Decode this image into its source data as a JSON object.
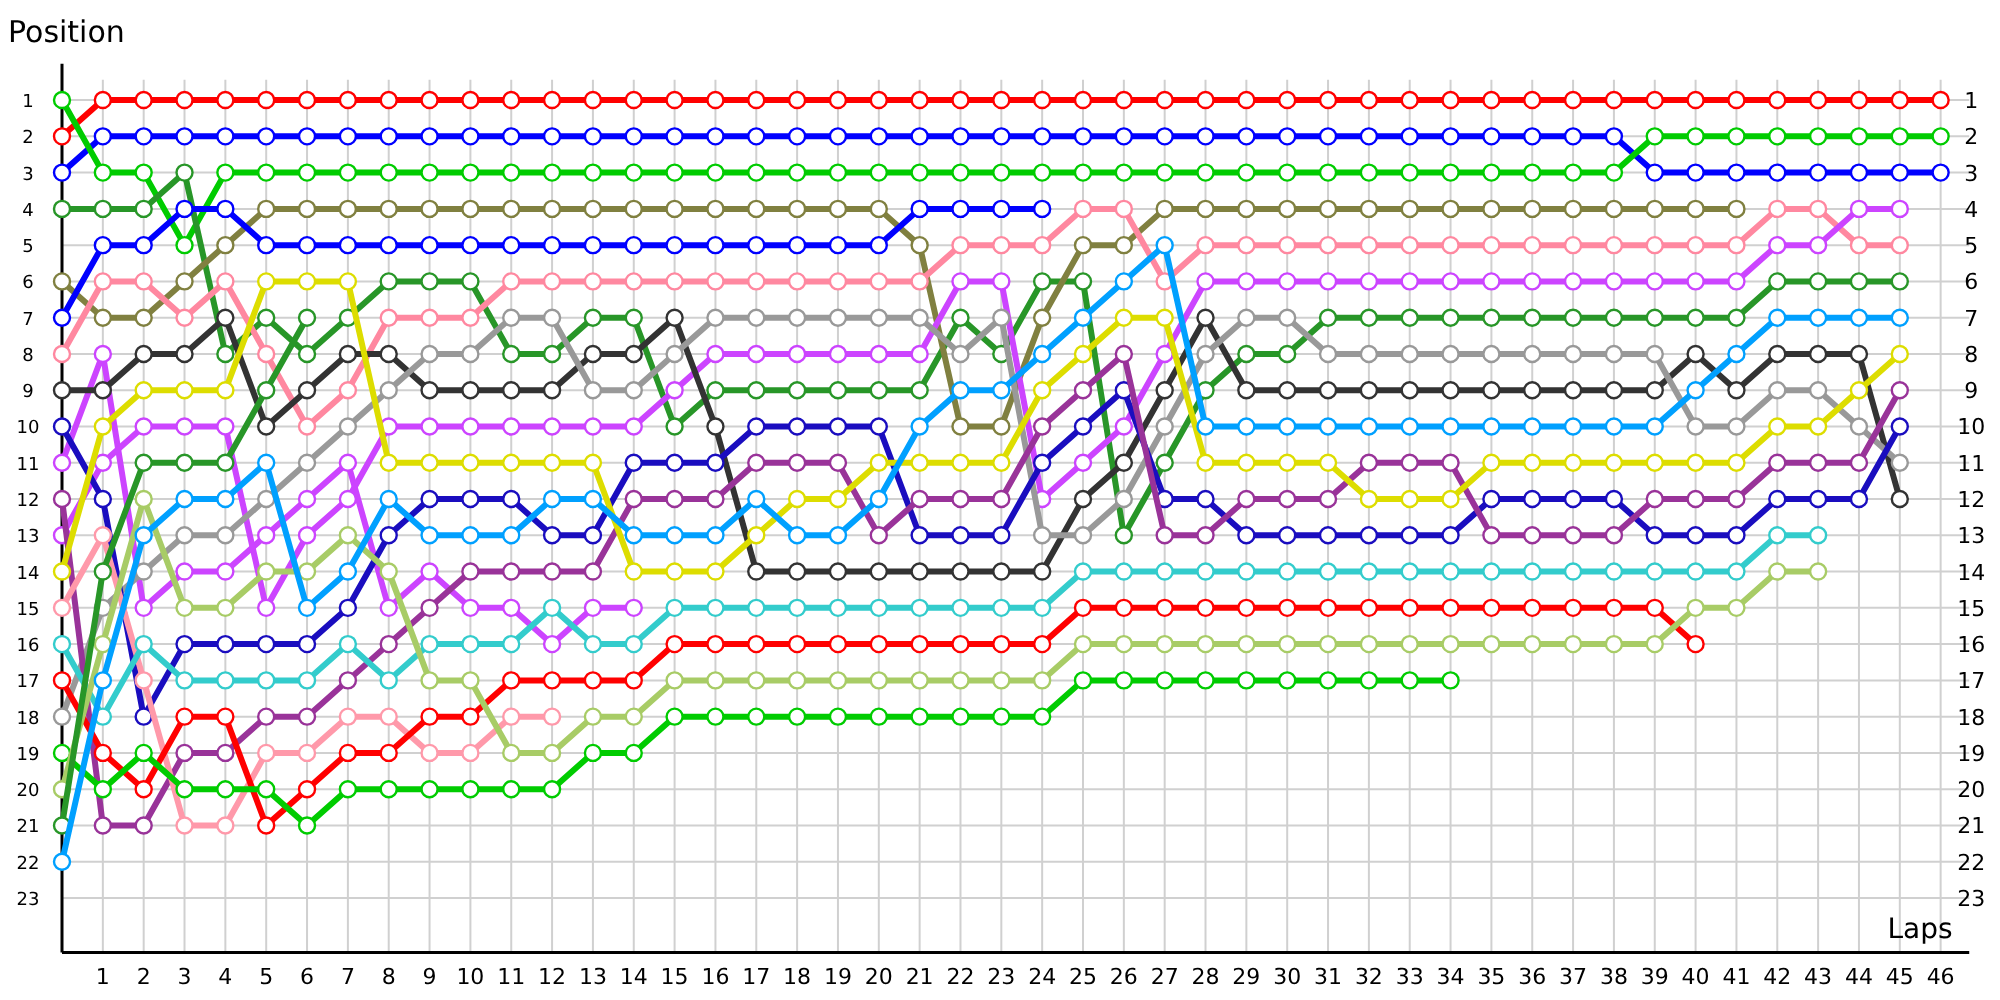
{
  "chart_data": {
    "type": "line",
    "xlabel": "Laps",
    "ylabel": "Position",
    "x": [
      0,
      1,
      2,
      3,
      4,
      5,
      6,
      7,
      8,
      9,
      10,
      11,
      12,
      13,
      14,
      15,
      16,
      17,
      18,
      19,
      20,
      21,
      22,
      23,
      24,
      25,
      26,
      27,
      28,
      29,
      30,
      31,
      32,
      33,
      34,
      35,
      36,
      37,
      38,
      39,
      40,
      41,
      42,
      43,
      44,
      45,
      46
    ],
    "xlim": [
      0,
      46.7
    ],
    "xticks": [
      1,
      2,
      3,
      4,
      5,
      6,
      7,
      8,
      9,
      10,
      11,
      12,
      13,
      14,
      15,
      16,
      17,
      18,
      19,
      20,
      21,
      22,
      23,
      24,
      25,
      26,
      27,
      28,
      29,
      30,
      31,
      32,
      33,
      34,
      35,
      36,
      37,
      38,
      39,
      40,
      41,
      42,
      43,
      44,
      45,
      46
    ],
    "ylim": [
      24.5,
      0
    ],
    "yticks": [
      1,
      2,
      3,
      4,
      5,
      6,
      7,
      8,
      9,
      10,
      11,
      12,
      13,
      14,
      15,
      16,
      17,
      18,
      19,
      20,
      21,
      22,
      23
    ],
    "y2lim": [
      23,
      1
    ],
    "y2ticks": [
      1,
      2,
      3,
      4,
      5,
      6,
      7,
      8,
      9,
      10,
      11,
      12,
      13,
      14,
      15,
      16,
      17,
      18,
      19,
      20,
      21,
      22,
      23
    ],
    "grid": true,
    "marker": "circle",
    "line_style": "solid",
    "series": [
      {
        "color": "#ff0000",
        "values": [
          2,
          1,
          1,
          1,
          1,
          1,
          1,
          1,
          1,
          1,
          1,
          1,
          1,
          1,
          1,
          1,
          1,
          1,
          1,
          1,
          1,
          1,
          1,
          1,
          1,
          1,
          1,
          1,
          1,
          1,
          1,
          1,
          1,
          1,
          1,
          1,
          1,
          1,
          1,
          1,
          1,
          1,
          1,
          1,
          1,
          1,
          1
        ]
      },
      {
        "color": "#0000ff",
        "values": [
          3,
          2,
          2,
          2,
          2,
          2,
          2,
          2,
          2,
          2,
          2,
          2,
          2,
          2,
          2,
          2,
          2,
          2,
          2,
          2,
          2,
          2,
          2,
          2,
          2,
          2,
          2,
          2,
          2,
          2,
          2,
          2,
          2,
          2,
          2,
          2,
          2,
          2,
          2,
          3,
          3,
          3,
          3,
          3,
          3,
          3,
          3
        ]
      },
      {
        "color": "#00cc00",
        "values": [
          1,
          3,
          3,
          5,
          3,
          3,
          3,
          3,
          3,
          3,
          3,
          3,
          3,
          3,
          3,
          3,
          3,
          3,
          3,
          3,
          3,
          3,
          3,
          3,
          3,
          3,
          3,
          3,
          3,
          3,
          3,
          3,
          3,
          3,
          3,
          3,
          3,
          3,
          3,
          2,
          2,
          2,
          2,
          2,
          2,
          2,
          2
        ]
      },
      {
        "color": "#289628",
        "values": [
          4,
          4,
          4,
          3,
          8,
          7,
          8,
          7,
          6,
          6,
          6,
          8,
          8,
          7,
          7,
          10,
          9,
          9,
          9,
          9,
          9,
          9,
          7,
          8,
          6,
          6,
          13,
          11,
          9,
          8,
          8,
          7,
          7,
          7,
          7,
          7,
          7,
          7,
          7,
          7,
          7,
          7,
          6,
          6,
          6,
          6,
          null
        ]
      },
      {
        "color": "#808040",
        "values": [
          6,
          7,
          7,
          6,
          5,
          4,
          4,
          4,
          4,
          4,
          4,
          4,
          4,
          4,
          4,
          4,
          4,
          4,
          4,
          4,
          4,
          5,
          10,
          10,
          7,
          5,
          5,
          4,
          4,
          4,
          4,
          4,
          4,
          4,
          4,
          4,
          4,
          4,
          4,
          4,
          4,
          4,
          null,
          null,
          null,
          null,
          null
        ]
      },
      {
        "color": "#0000ff",
        "values": [
          7,
          5,
          5,
          4,
          4,
          5,
          5,
          5,
          5,
          5,
          5,
          5,
          5,
          5,
          5,
          5,
          5,
          5,
          5,
          5,
          5,
          4,
          4,
          4,
          4,
          null,
          null,
          null,
          null,
          null,
          null,
          null,
          null,
          null,
          null,
          null,
          null,
          null,
          null,
          null,
          null,
          null,
          null,
          null,
          null,
          null,
          null
        ]
      },
      {
        "color": "#ff88a0",
        "values": [
          8,
          6,
          6,
          7,
          6,
          8,
          10,
          9,
          7,
          7,
          7,
          6,
          6,
          6,
          6,
          6,
          6,
          6,
          6,
          6,
          6,
          6,
          5,
          5,
          5,
          4,
          4,
          6,
          5,
          5,
          5,
          5,
          5,
          5,
          5,
          5,
          5,
          5,
          5,
          5,
          5,
          5,
          4,
          4,
          5,
          5,
          null
        ]
      },
      {
        "color": "#cc44ff",
        "values": [
          11,
          8,
          15,
          14,
          14,
          13,
          12,
          11,
          15,
          14,
          15,
          15,
          16,
          15,
          15,
          null,
          null,
          null,
          null,
          null,
          null,
          null,
          null,
          null,
          null,
          null,
          null,
          null,
          null,
          null,
          null,
          null,
          null,
          null,
          null,
          null,
          null,
          null,
          null,
          null,
          null,
          null,
          null,
          null,
          null,
          null,
          null
        ]
      },
      {
        "color": "#cc44ff",
        "values": [
          13,
          11,
          10,
          10,
          10,
          15,
          13,
          12,
          10,
          10,
          10,
          10,
          10,
          10,
          10,
          9,
          8,
          8,
          8,
          8,
          8,
          8,
          6,
          6,
          12,
          11,
          10,
          8,
          6,
          6,
          6,
          6,
          6,
          6,
          6,
          6,
          6,
          6,
          6,
          6,
          6,
          6,
          5,
          5,
          4,
          4,
          null
        ]
      },
      {
        "color": "#333333",
        "values": [
          9,
          9,
          8,
          8,
          7,
          10,
          9,
          8,
          8,
          9,
          9,
          9,
          9,
          8,
          8,
          7,
          10,
          14,
          14,
          14,
          14,
          14,
          14,
          14,
          14,
          12,
          11,
          9,
          7,
          9,
          9,
          9,
          9,
          9,
          9,
          9,
          9,
          9,
          9,
          9,
          8,
          9,
          8,
          8,
          8,
          12,
          null
        ]
      },
      {
        "color": "#999999",
        "values": [
          18,
          15,
          14,
          13,
          13,
          12,
          11,
          10,
          9,
          8,
          8,
          7,
          7,
          9,
          9,
          8,
          7,
          7,
          7,
          7,
          7,
          7,
          8,
          7,
          13,
          13,
          12,
          10,
          8,
          7,
          7,
          8,
          8,
          8,
          8,
          8,
          8,
          8,
          8,
          8,
          10,
          10,
          9,
          9,
          10,
          11,
          null
        ]
      },
      {
        "color": "#1a0dbf",
        "values": [
          10,
          12,
          18,
          16,
          16,
          16,
          16,
          15,
          13,
          12,
          12,
          12,
          13,
          13,
          11,
          11,
          11,
          10,
          10,
          10,
          10,
          13,
          13,
          13,
          11,
          10,
          9,
          12,
          12,
          13,
          13,
          13,
          13,
          13,
          13,
          12,
          12,
          12,
          12,
          13,
          13,
          13,
          12,
          12,
          12,
          10,
          null
        ]
      },
      {
        "color": "#993399",
        "values": [
          12,
          21,
          21,
          19,
          19,
          18,
          18,
          17,
          16,
          15,
          14,
          14,
          14,
          14,
          12,
          12,
          12,
          11,
          11,
          11,
          13,
          12,
          12,
          12,
          10,
          9,
          8,
          13,
          13,
          12,
          12,
          12,
          11,
          11,
          11,
          13,
          13,
          13,
          13,
          12,
          12,
          12,
          11,
          11,
          11,
          9,
          null
        ]
      },
      {
        "color": "#dddd00",
        "values": [
          14,
          10,
          9,
          9,
          9,
          6,
          6,
          6,
          11,
          11,
          11,
          11,
          11,
          11,
          14,
          14,
          14,
          13,
          12,
          12,
          11,
          11,
          11,
          11,
          9,
          8,
          7,
          7,
          11,
          11,
          11,
          11,
          12,
          12,
          12,
          11,
          11,
          11,
          11,
          11,
          11,
          11,
          10,
          10,
          9,
          8,
          null
        ]
      },
      {
        "color": "#ff99aa",
        "values": [
          15,
          13,
          17,
          21,
          21,
          19,
          19,
          18,
          18,
          19,
          19,
          18,
          18,
          null,
          null,
          null,
          null,
          null,
          null,
          null,
          null,
          null,
          null,
          null,
          null,
          null,
          null,
          null,
          null,
          null,
          null,
          null,
          null,
          null,
          null,
          null,
          null,
          null,
          null,
          null,
          null,
          null,
          null,
          null,
          null,
          null,
          null
        ]
      },
      {
        "color": "#33cccc",
        "values": [
          16,
          18,
          16,
          17,
          17,
          17,
          17,
          16,
          17,
          16,
          16,
          16,
          15,
          16,
          16,
          15,
          15,
          15,
          15,
          15,
          15,
          15,
          15,
          15,
          15,
          14,
          14,
          14,
          14,
          14,
          14,
          14,
          14,
          14,
          14,
          14,
          14,
          14,
          14,
          14,
          14,
          14,
          13,
          13,
          null,
          null,
          null
        ]
      },
      {
        "color": "#ff0000",
        "values": [
          17,
          19,
          20,
          18,
          18,
          21,
          20,
          19,
          19,
          18,
          18,
          17,
          17,
          17,
          17,
          16,
          16,
          16,
          16,
          16,
          16,
          16,
          16,
          16,
          16,
          15,
          15,
          15,
          15,
          15,
          15,
          15,
          15,
          15,
          15,
          15,
          15,
          15,
          15,
          15,
          16,
          null,
          null,
          null,
          null,
          null,
          null
        ]
      },
      {
        "color": "#00cc00",
        "values": [
          19,
          20,
          19,
          20,
          20,
          20,
          21,
          20,
          20,
          20,
          20,
          20,
          20,
          19,
          19,
          18,
          18,
          18,
          18,
          18,
          18,
          18,
          18,
          18,
          18,
          17,
          17,
          17,
          17,
          17,
          17,
          17,
          17,
          17,
          17,
          null,
          null,
          null,
          null,
          null,
          null,
          null,
          null,
          null,
          null,
          null,
          null
        ]
      },
      {
        "color": "#a8cc66",
        "values": [
          20,
          16,
          12,
          15,
          15,
          14,
          14,
          13,
          14,
          17,
          17,
          19,
          19,
          18,
          18,
          17,
          17,
          17,
          17,
          17,
          17,
          17,
          17,
          17,
          17,
          16,
          16,
          16,
          16,
          16,
          16,
          16,
          16,
          16,
          16,
          16,
          16,
          16,
          16,
          16,
          15,
          15,
          14,
          14,
          null,
          null,
          null
        ]
      },
      {
        "color": "#289628",
        "values": [
          21,
          14,
          11,
          11,
          11,
          9,
          7,
          null,
          null,
          null,
          null,
          null,
          null,
          null,
          null,
          null,
          null,
          null,
          null,
          null,
          null,
          null,
          null,
          null,
          null,
          null,
          null,
          null,
          null,
          null,
          null,
          null,
          null,
          null,
          null,
          null,
          null,
          null,
          null,
          null,
          null,
          null,
          null,
          null,
          null,
          null,
          null
        ]
      },
      {
        "color": "#00a0ff",
        "values": [
          22,
          17,
          13,
          12,
          12,
          11,
          15,
          14,
          12,
          13,
          13,
          13,
          12,
          12,
          13,
          13,
          13,
          12,
          13,
          13,
          12,
          10,
          9,
          9,
          8,
          7,
          6,
          5,
          10,
          10,
          10,
          10,
          10,
          10,
          10,
          10,
          10,
          10,
          10,
          10,
          9,
          8,
          7,
          7,
          7,
          7,
          null
        ]
      }
    ]
  }
}
